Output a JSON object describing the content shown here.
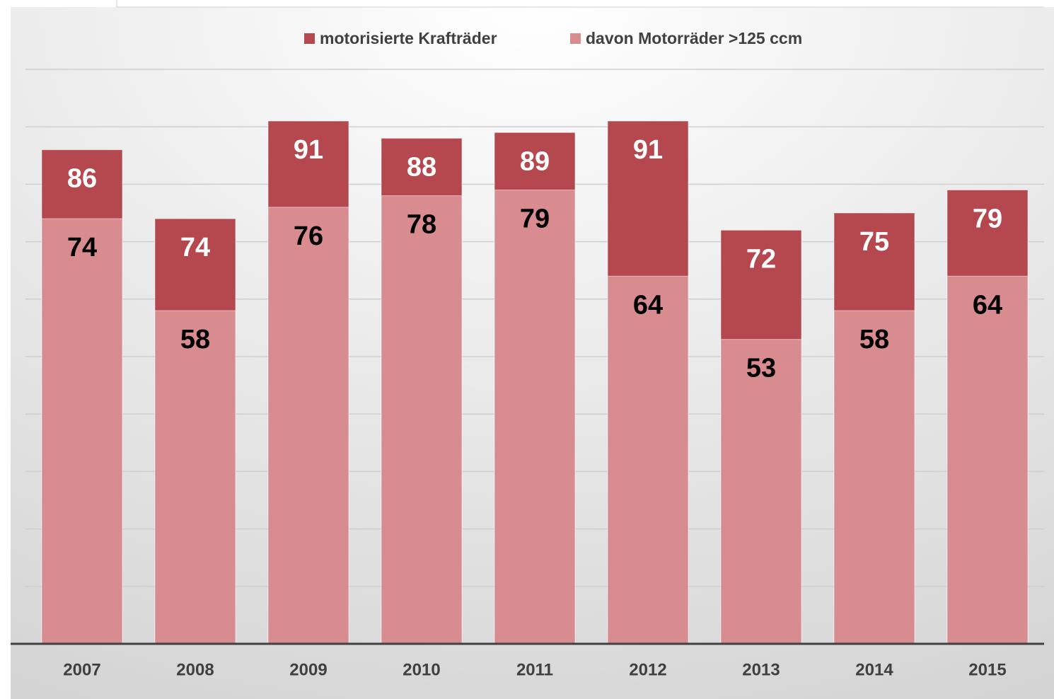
{
  "chart_data": {
    "type": "bar",
    "overlap": true,
    "categories": [
      "2007",
      "2008",
      "2009",
      "2010",
      "2011",
      "2012",
      "2013",
      "2014",
      "2015"
    ],
    "series": [
      {
        "name": "motorisierte Krafträder",
        "color": "#b5474f",
        "label_color": "#ffffff",
        "values": [
          86,
          74,
          91,
          88,
          89,
          91,
          72,
          75,
          79
        ]
      },
      {
        "name": "davon Motorräder >125 ccm",
        "color": "#d98c90",
        "label_color": "#000000",
        "values": [
          74,
          58,
          76,
          78,
          79,
          64,
          53,
          58,
          64
        ]
      }
    ],
    "ylim": [
      0,
      100
    ],
    "yticks": [
      0,
      10,
      20,
      30,
      40,
      50,
      60,
      70,
      80,
      90,
      100
    ],
    "grid": true,
    "legend": "top"
  }
}
